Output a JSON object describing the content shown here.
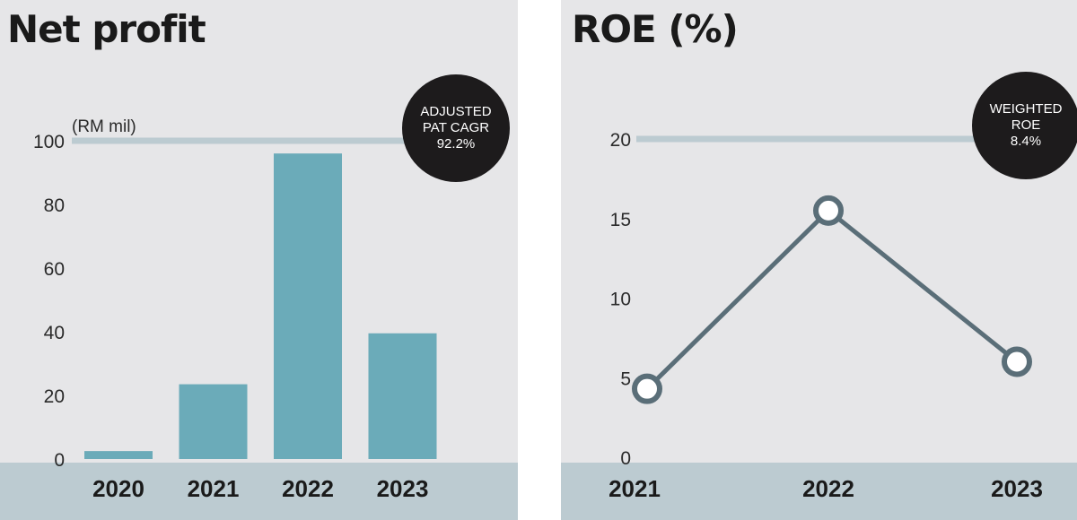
{
  "colors": {
    "panel_bg": "#e6e6e8",
    "axis_band": "#bccbd1",
    "bar": "#6babb9",
    "line": "#5a6e78",
    "gridline": "#bccbd1",
    "badge_bg": "#1d1b1c"
  },
  "net_profit": {
    "title": "Net profit",
    "badge": {
      "line1": "ADJUSTED",
      "line2": "PAT CAGR",
      "value": "92.2%"
    },
    "chart_data": {
      "type": "bar",
      "title": "Net profit",
      "unit_label": "(RM mil)",
      "categories": [
        "2020",
        "2021",
        "2022",
        "2023"
      ],
      "values": [
        2.5,
        23.5,
        96,
        39.5
      ],
      "ylim": [
        0,
        100
      ],
      "yticks": [
        "0",
        "20",
        "40",
        "60",
        "80",
        "100"
      ],
      "grid": "top line only"
    }
  },
  "roe": {
    "title": "ROE (%)",
    "badge": {
      "line1": "WEIGHTED",
      "line2": "ROE",
      "value": "8.4%"
    },
    "chart_data": {
      "type": "line",
      "title": "ROE (%)",
      "x": [
        "2021",
        "2022",
        "2023"
      ],
      "values": [
        4.3,
        15.5,
        6.0
      ],
      "ylim": [
        0,
        20
      ],
      "yticks": [
        "0",
        "5",
        "10",
        "15",
        "20"
      ],
      "grid": "top line only"
    }
  }
}
